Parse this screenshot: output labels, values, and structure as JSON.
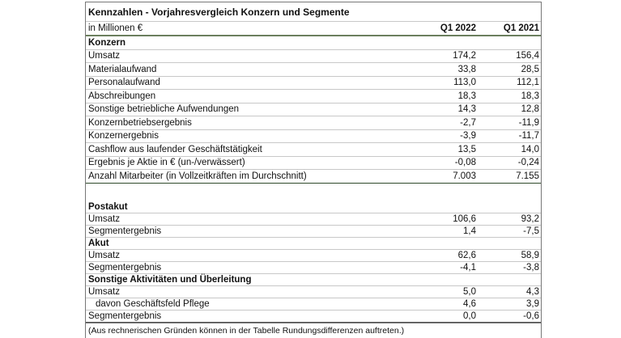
{
  "title": "Kennzahlen - Vorjahresvergleich Konzern und Segmente",
  "header": {
    "unit": "in Millionen €",
    "col1": "Q1 2022",
    "col2": "Q1 2021"
  },
  "konzern": {
    "heading": "Konzern",
    "rows": [
      {
        "label": "Umsatz",
        "q1_2022": "174,2",
        "q1_2021": "156,4"
      },
      {
        "label": "Materialaufwand",
        "q1_2022": "33,8",
        "q1_2021": "28,5"
      },
      {
        "label": "Personalaufwand",
        "q1_2022": "113,0",
        "q1_2021": "112,1"
      },
      {
        "label": "Abschreibungen",
        "q1_2022": "18,3",
        "q1_2021": "18,3"
      },
      {
        "label": "Sonstige betriebliche Aufwendungen",
        "q1_2022": "14,3",
        "q1_2021": "12,8"
      },
      {
        "label": "Konzernbetriebsergebnis",
        "q1_2022": "-2,7",
        "q1_2021": "-11,9"
      },
      {
        "label": "Konzernergebnis",
        "q1_2022": "-3,9",
        "q1_2021": "-11,7"
      },
      {
        "label": "Cashflow aus laufender Geschäftstätigkeit",
        "q1_2022": "13,5",
        "q1_2021": "14,0"
      },
      {
        "label": "Ergebnis je Aktie in € (un-/verwässert)",
        "q1_2022": "-0,08",
        "q1_2021": "-0,24"
      },
      {
        "label": "Anzahl Mitarbeiter (in Vollzeitkräften im Durchschnitt)",
        "q1_2022": "7.003",
        "q1_2021": "7.155"
      }
    ]
  },
  "segments": [
    {
      "heading": "Postakut",
      "rows": [
        {
          "label": "Umsatz",
          "q1_2022": "106,6",
          "q1_2021": "93,2"
        },
        {
          "label": "Segmentergebnis",
          "q1_2022": "1,4",
          "q1_2021": "-7,5"
        }
      ]
    },
    {
      "heading": "Akut",
      "rows": [
        {
          "label": "Umsatz",
          "q1_2022": "62,6",
          "q1_2021": "58,9"
        },
        {
          "label": "Segmentergebnis",
          "q1_2022": "-4,1",
          "q1_2021": "-3,8"
        }
      ]
    },
    {
      "heading": "Sonstige Aktivitäten und Überleitung",
      "rows": [
        {
          "label": "Umsatz",
          "q1_2022": "5,0",
          "q1_2021": "4,3"
        },
        {
          "label": "davon Geschäftsfeld Pflege",
          "q1_2022": "4,6",
          "q1_2021": "3,9",
          "indent": true
        },
        {
          "label": "Segmentergebnis",
          "q1_2022": "0,0",
          "q1_2021": "-0,6"
        }
      ]
    }
  ],
  "footnote": "(Aus rechnerischen Gründen können in der Tabelle Rundungsdifferenzen auftreten.)"
}
